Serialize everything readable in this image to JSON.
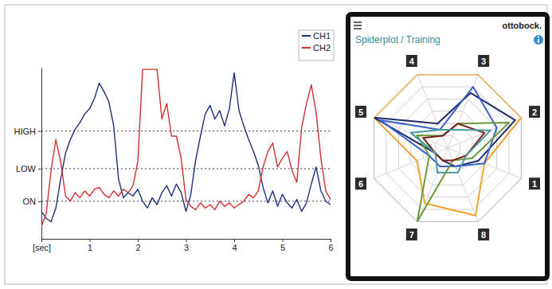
{
  "chart_data": [
    {
      "type": "line",
      "x": [
        0,
        0.1,
        0.2,
        0.3,
        0.4,
        0.5,
        0.6,
        0.7,
        0.8,
        0.9,
        1,
        1.1,
        1.2,
        1.3,
        1.4,
        1.5,
        1.6,
        1.7,
        1.8,
        1.9,
        2,
        2.1,
        2.2,
        2.3,
        2.4,
        2.5,
        2.6,
        2.7,
        2.8,
        2.9,
        3,
        3.1,
        3.2,
        3.3,
        3.4,
        3.5,
        3.6,
        3.7,
        3.8,
        3.9,
        4,
        4.1,
        4.2,
        4.3,
        4.4,
        4.5,
        4.6,
        4.7,
        4.8,
        4.9,
        5,
        5.1,
        5.2,
        5.3,
        5.4,
        5.5,
        5.6,
        5.7,
        5.8,
        5.9,
        6
      ],
      "series": [
        {
          "name": "CH1",
          "color": "#1f2f7f",
          "values": [
            16,
            12,
            10,
            18,
            35,
            50,
            58,
            64,
            68,
            73,
            76,
            82,
            91,
            86,
            80,
            66,
            35,
            24,
            27,
            25,
            29,
            22,
            18,
            24,
            20,
            27,
            31,
            25,
            32,
            27,
            16,
            26,
            46,
            60,
            73,
            78,
            70,
            75,
            66,
            76,
            97,
            75,
            66,
            58,
            51,
            43,
            30,
            21,
            28,
            19,
            26,
            21,
            18,
            23,
            16,
            21,
            32,
            42,
            28,
            22,
            20
          ]
        },
        {
          "name": "CH2",
          "color": "#d43030",
          "values": [
            7,
            15,
            40,
            58,
            45,
            25,
            22,
            27,
            24,
            28,
            25,
            29,
            30,
            26,
            24,
            28,
            25,
            29,
            27,
            31,
            45,
            99,
            99,
            99,
            99,
            70,
            79,
            60,
            60,
            47,
            23,
            19,
            17,
            21,
            18,
            20,
            17,
            22,
            19,
            21,
            18,
            20,
            22,
            26,
            24,
            28,
            42,
            51,
            56,
            42,
            47,
            51,
            40,
            33,
            65,
            79,
            90,
            74,
            47,
            28,
            23
          ]
        }
      ],
      "xlim": [
        0,
        6
      ],
      "xticks": [
        {
          "value": 0,
          "label": "[sec]"
        },
        1,
        2,
        3,
        4,
        5,
        6
      ],
      "ylim": [
        0,
        100
      ],
      "yticks": [
        {
          "value": 22,
          "label": "ON"
        },
        {
          "value": 41,
          "label": "LOW"
        },
        {
          "value": 63,
          "label": "HIGH"
        }
      ],
      "grid": true,
      "legend": "upper right"
    },
    {
      "type": "radar",
      "title": "Spiderplot / Training",
      "annotations": [
        "ottobock."
      ],
      "categories": [
        "1",
        "2",
        "3",
        "4",
        "5",
        "6",
        "7",
        "8"
      ],
      "series": [
        {
          "color": "#f5a02e",
          "values": [
            3,
            6,
            6,
            6,
            6,
            2.5,
            4.5,
            5.5
          ]
        },
        {
          "color": "#1f2a6b",
          "values": [
            2.5,
            5.5,
            4.5,
            2,
            6,
            1,
            1,
            1.5
          ]
        },
        {
          "color": "#3a62c8",
          "values": [
            3,
            4,
            5,
            1.5,
            5.5,
            1.5,
            1.5,
            1.5
          ]
        },
        {
          "color": "#6b9a3a",
          "values": [
            2,
            5,
            2,
            1,
            2.5,
            1.5,
            6,
            1
          ]
        },
        {
          "color": "#7a1f1f",
          "values": [
            1.5,
            3,
            2,
            1,
            2,
            1,
            1,
            1
          ]
        },
        {
          "color": "#4a9aa0",
          "values": [
            1.5,
            3.5,
            1.5,
            1.5,
            3,
            1,
            2,
            2
          ]
        }
      ],
      "ylim": [
        0,
        6
      ],
      "yticks": [
        1,
        2,
        3,
        4,
        5,
        6
      ],
      "grid": true,
      "tick_labels": "x"
    }
  ]
}
